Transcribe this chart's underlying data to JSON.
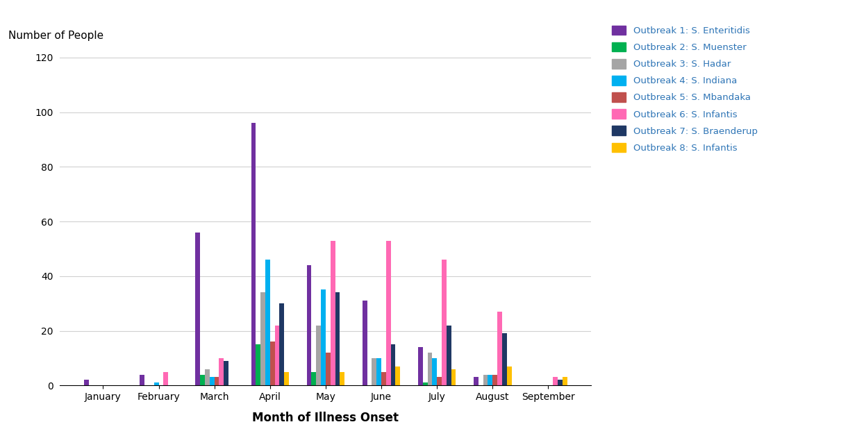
{
  "months": [
    "January",
    "February",
    "March",
    "April",
    "May",
    "June",
    "July",
    "August",
    "September"
  ],
  "outbreaks": [
    {
      "name": "Outbreak 1: S. Enteritidis",
      "color": "#7030A0",
      "values": [
        2,
        4,
        56,
        96,
        44,
        31,
        14,
        3,
        0
      ]
    },
    {
      "name": "Outbreak 2: S. Muenster",
      "color": "#00B050",
      "values": [
        0,
        0,
        4,
        15,
        5,
        0,
        1,
        0,
        0
      ]
    },
    {
      "name": "Outbreak 3: S. Hadar",
      "color": "#A5A5A5",
      "values": [
        0,
        0,
        6,
        34,
        22,
        10,
        12,
        4,
        0
      ]
    },
    {
      "name": "Outbreak 4: S. Indiana",
      "color": "#00B0F0",
      "values": [
        0,
        1,
        3,
        46,
        35,
        10,
        10,
        4,
        0
      ]
    },
    {
      "name": "Outbreak 5: S. Mbandaka",
      "color": "#C0504D",
      "values": [
        0,
        0,
        3,
        16,
        12,
        5,
        3,
        4,
        0
      ]
    },
    {
      "name": "Outbreak 6: S. Infantis",
      "color": "#FF69B4",
      "values": [
        0,
        5,
        10,
        22,
        53,
        53,
        46,
        27,
        3
      ]
    },
    {
      "name": "Outbreak 7: S. Braenderup",
      "color": "#1F3864",
      "values": [
        0,
        0,
        9,
        30,
        34,
        15,
        22,
        19,
        2
      ]
    },
    {
      "name": "Outbreak 8: S. Infantis",
      "color": "#FFC000",
      "values": [
        0,
        0,
        0,
        5,
        5,
        7,
        6,
        7,
        3
      ]
    }
  ],
  "top_label": "Number of People",
  "xlabel": "Month of Illness Onset",
  "ylim": [
    0,
    125
  ],
  "yticks": [
    0,
    20,
    40,
    60,
    80,
    100,
    120
  ],
  "background_color": "#FFFFFF",
  "grid_color": "#D0D0D0"
}
